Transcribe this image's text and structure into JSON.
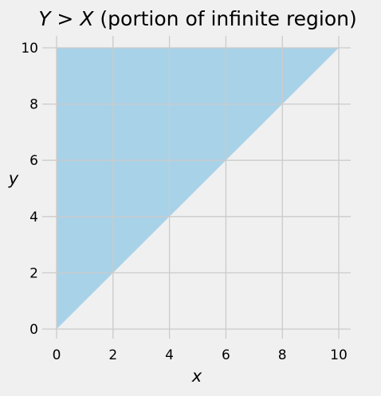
{
  "chart_data": {
    "type": "area",
    "title_parts": {
      "y": "Y",
      "op": " > ",
      "x": "X",
      "rest": " (portion of infinite region)"
    },
    "xlabel": "x",
    "ylabel": "y",
    "xlim": [
      0,
      10
    ],
    "ylim": [
      0,
      10
    ],
    "xticks": [
      0,
      2,
      4,
      6,
      8,
      10
    ],
    "yticks": [
      0,
      2,
      4,
      6,
      8,
      10
    ],
    "xtick_labels": [
      "0",
      "2",
      "4",
      "6",
      "8",
      "10"
    ],
    "ytick_labels": [
      "0",
      "2",
      "4",
      "6",
      "8",
      "10"
    ],
    "grid": true,
    "region": {
      "description_key": "y_greater_than_x",
      "vertices": [
        [
          0,
          0
        ],
        [
          0,
          10
        ],
        [
          10,
          10
        ]
      ],
      "fill_color": "#a8d2e8"
    },
    "colors": {
      "background": "#f0f0f0",
      "grid": "#cbcbcb"
    }
  }
}
